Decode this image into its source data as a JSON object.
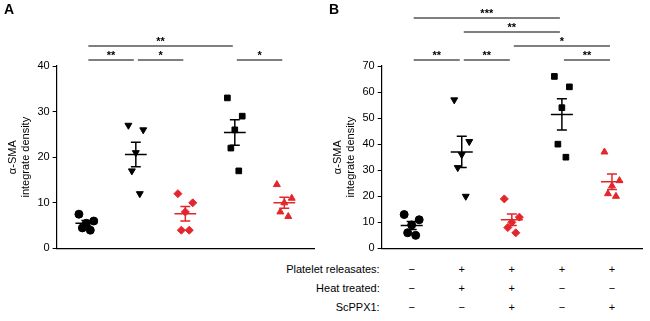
{
  "chart_data": [
    {
      "type": "scatter",
      "panel": "A",
      "y_label": [
        "α-SMA",
        "integrate density"
      ],
      "ylim": [
        0,
        40
      ],
      "yticks": [
        0,
        10,
        20,
        30,
        40
      ],
      "grid": false,
      "tick_labels": "y",
      "groups": [
        {
          "color": "#000000",
          "marker": "circle",
          "values": [
            7.5,
            6.0,
            5.5,
            4.5,
            4.0
          ],
          "mean": 5.5,
          "sem": 0.6
        },
        {
          "color": "#000000",
          "marker": "triangle-down",
          "values": [
            27,
            26,
            21,
            17,
            12
          ],
          "mean": 20.6,
          "sem": 2.7
        },
        {
          "color": "#e3262c",
          "marker": "diamond",
          "values": [
            12,
            10,
            8,
            4,
            4
          ],
          "mean": 7.6,
          "sem": 1.6
        },
        {
          "color": "#000000",
          "marker": "square",
          "values": [
            33,
            29,
            26,
            22,
            17
          ],
          "mean": 25.4,
          "sem": 2.8
        },
        {
          "color": "#e3262c",
          "marker": "triangle",
          "values": [
            14,
            11,
            10,
            8,
            7
          ],
          "mean": 10.0,
          "sem": 1.2
        }
      ],
      "comparisons": [
        {
          "from": 0,
          "to": 1,
          "label": "**"
        },
        {
          "from": 1,
          "to": 2,
          "label": "*"
        },
        {
          "from": 3,
          "to": 4,
          "label": "*"
        },
        {
          "from": 0,
          "to": 3,
          "label": "**"
        }
      ]
    },
    {
      "type": "scatter",
      "panel": "B",
      "y_label": [
        "α-SMA",
        "integrate density"
      ],
      "ylim": [
        0,
        70
      ],
      "yticks": [
        0,
        10,
        20,
        30,
        40,
        50,
        60,
        70
      ],
      "grid": false,
      "tick_labels": "y",
      "groups": [
        {
          "color": "#000000",
          "marker": "circle",
          "values": [
            13,
            11,
            9,
            6,
            5
          ],
          "mean": 8.8,
          "sem": 1.5
        },
        {
          "color": "#000000",
          "marker": "triangle-down",
          "values": [
            57,
            41,
            36,
            31,
            20
          ],
          "mean": 37,
          "sem": 6
        },
        {
          "color": "#e3262c",
          "marker": "diamond",
          "values": [
            19,
            12,
            10,
            8,
            6
          ],
          "mean": 11,
          "sem": 2.2
        },
        {
          "color": "#000000",
          "marker": "square",
          "values": [
            66,
            62,
            54,
            40,
            35
          ],
          "mean": 51.4,
          "sem": 6
        },
        {
          "color": "#e3262c",
          "marker": "triangle",
          "values": [
            37,
            26,
            24,
            21,
            20
          ],
          "mean": 25.6,
          "sem": 3
        }
      ],
      "comparisons": [
        {
          "from": 0,
          "to": 1,
          "label": "**"
        },
        {
          "from": 1,
          "to": 2,
          "label": "**"
        },
        {
          "from": 3,
          "to": 4,
          "label": "**"
        },
        {
          "from": 2,
          "to": 4,
          "label": "*"
        },
        {
          "from": 1,
          "to": 3,
          "label": "**"
        },
        {
          "from": 0,
          "to": 3,
          "label": "***"
        }
      ]
    }
  ],
  "conditions": {
    "rows": [
      {
        "label": "Platelet releasates:",
        "values": [
          "−",
          "+",
          "+",
          "+",
          "+"
        ]
      },
      {
        "label": "Heat treated:",
        "values": [
          "−",
          "+",
          "+",
          "−",
          "−"
        ]
      },
      {
        "label": "ScPPX1:",
        "values": [
          "−",
          "−",
          "+",
          "−",
          "+"
        ]
      }
    ]
  }
}
